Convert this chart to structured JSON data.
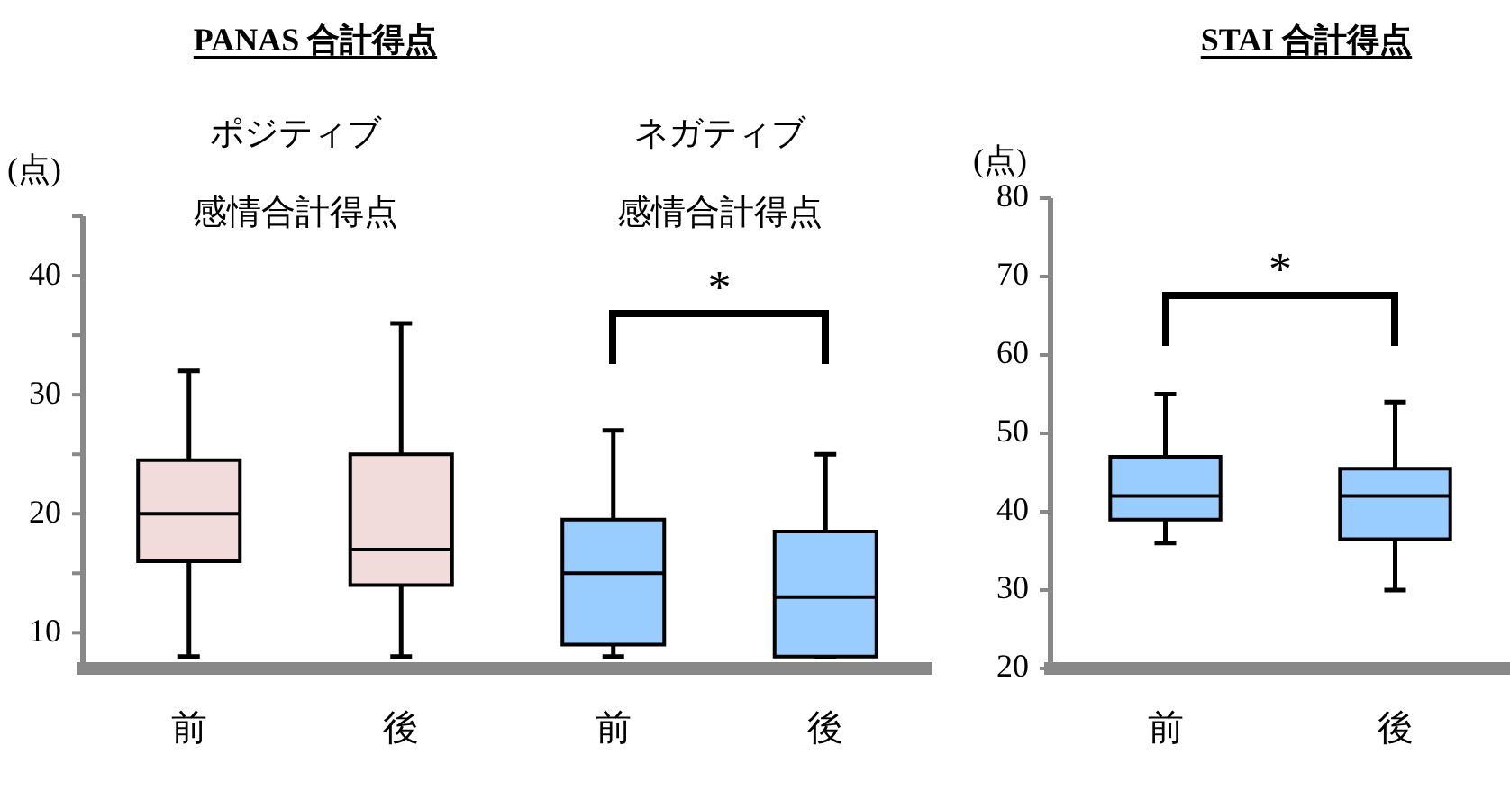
{
  "chart_data": [
    {
      "type": "box",
      "title": "PANAS 合計得点",
      "ylabel": "(点)",
      "categories": [
        "前",
        "後",
        "前",
        "後"
      ],
      "boxes": [
        {
          "low": 8,
          "q1": 16,
          "median": 20,
          "q3": 24.5,
          "high": 32
        },
        {
          "low": 8,
          "q1": 14,
          "median": 17,
          "q3": 25,
          "high": 36
        },
        {
          "low": 8,
          "q1": 9,
          "median": 15,
          "q3": 19.5,
          "high": 27
        },
        {
          "low": 8,
          "q1": 8,
          "median": 13,
          "q3": 18.5,
          "high": 25
        }
      ],
      "colors": [
        "#f2dcdb",
        "#f2dcdb",
        "#99ccff",
        "#99ccff"
      ],
      "ylim": [
        7,
        45
      ],
      "yticks": [
        10,
        {
          "value": 15,
          "label": null
        },
        20,
        {
          "value": 25,
          "label": null
        },
        30,
        {
          "value": 35,
          "label": null
        },
        40,
        {
          "value": 45,
          "label": null
        }
      ],
      "annotations": [
        "ポジティブ",
        "感情合計得点",
        "ネガティブ",
        "感情合計得点",
        "*"
      ]
    },
    {
      "type": "box",
      "title": "STAI 合計得点",
      "ylabel": "(点)",
      "categories": [
        "前",
        "後"
      ],
      "boxes": [
        {
          "low": 36,
          "q1": 39,
          "median": 42,
          "q3": 47,
          "high": 55
        },
        {
          "low": 30,
          "q1": 36.5,
          "median": 42,
          "q3": 45.5,
          "high": 54
        }
      ],
      "colors": [
        "#99ccff",
        "#99ccff"
      ],
      "ylim": [
        20,
        80
      ],
      "yticks": [
        20,
        30,
        40,
        50,
        60,
        70,
        80
      ],
      "annotations": [
        "*"
      ]
    }
  ]
}
